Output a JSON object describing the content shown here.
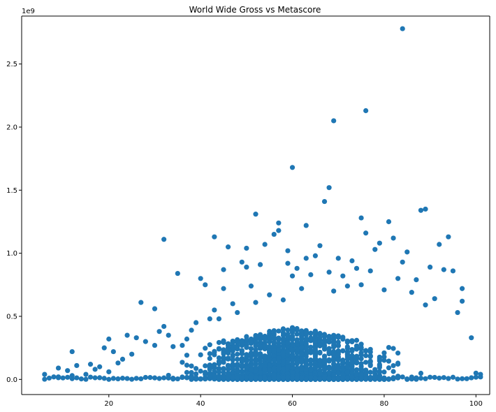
{
  "chart_data": {
    "type": "scatter",
    "title": "World Wide Gross vs Metascore",
    "xlabel": "",
    "ylabel": "",
    "y_offset_label": "1e9",
    "xlim": [
      1,
      103
    ],
    "ylim": [
      -0.12,
      2.88
    ],
    "x_ticks": [
      20,
      40,
      60,
      80,
      100
    ],
    "y_ticks": [
      0.0,
      0.5,
      1.0,
      1.5,
      2.0,
      2.5
    ],
    "y_tick_labels": [
      "0.0",
      "0.5",
      "1.0",
      "1.5",
      "2.0",
      "2.5"
    ],
    "marker_color": "#1f77b4",
    "grid": false,
    "legend": "none",
    "series": [
      {
        "values": [
          [
            6,
            0.04
          ],
          [
            9,
            0.09
          ],
          [
            9,
            0.02
          ],
          [
            11,
            0.07
          ],
          [
            12,
            0.22
          ],
          [
            12,
            0.03
          ],
          [
            13,
            0.11
          ],
          [
            15,
            0.04
          ],
          [
            16,
            0.12
          ],
          [
            17,
            0.08
          ],
          [
            18,
            0.1
          ],
          [
            19,
            0.25
          ],
          [
            20,
            0.32
          ],
          [
            20,
            0.06
          ],
          [
            21,
            0.22
          ],
          [
            22,
            0.13
          ],
          [
            23,
            0.16
          ],
          [
            24,
            0.35
          ],
          [
            25,
            0.2
          ],
          [
            26,
            0.33
          ],
          [
            27,
            0.61
          ],
          [
            28,
            0.3
          ],
          [
            30,
            0.56
          ],
          [
            30,
            0.27
          ],
          [
            31,
            0.38
          ],
          [
            32,
            1.11
          ],
          [
            32,
            0.42
          ],
          [
            33,
            0.35
          ],
          [
            34,
            0.26
          ],
          [
            35,
            0.84
          ],
          [
            36,
            0.27
          ],
          [
            37,
            0.32
          ],
          [
            38,
            0.39
          ],
          [
            39,
            0.45
          ],
          [
            40,
            0.8
          ],
          [
            41,
            0.75
          ],
          [
            42,
            0.48
          ],
          [
            43,
            1.13
          ],
          [
            43,
            0.55
          ],
          [
            44,
            0.48
          ],
          [
            45,
            0.87
          ],
          [
            45,
            0.72
          ],
          [
            46,
            1.05
          ],
          [
            47,
            0.6
          ],
          [
            48,
            0.53
          ],
          [
            49,
            0.93
          ],
          [
            50,
            1.04
          ],
          [
            50,
            0.89
          ],
          [
            51,
            0.74
          ],
          [
            52,
            1.31
          ],
          [
            52,
            0.61
          ],
          [
            53,
            0.91
          ],
          [
            54,
            1.07
          ],
          [
            55,
            0.67
          ],
          [
            56,
            1.15
          ],
          [
            57,
            1.24
          ],
          [
            57,
            1.18
          ],
          [
            58,
            0.63
          ],
          [
            59,
            1.02
          ],
          [
            59,
            0.92
          ],
          [
            60,
            1.68
          ],
          [
            60,
            0.82
          ],
          [
            61,
            0.88
          ],
          [
            62,
            0.72
          ],
          [
            63,
            1.22
          ],
          [
            63,
            0.96
          ],
          [
            64,
            0.83
          ],
          [
            65,
            0.98
          ],
          [
            66,
            1.06
          ],
          [
            67,
            1.41
          ],
          [
            68,
            1.52
          ],
          [
            68,
            0.85
          ],
          [
            69,
            2.05
          ],
          [
            69,
            0.7
          ],
          [
            70,
            0.96
          ],
          [
            71,
            0.82
          ],
          [
            72,
            0.74
          ],
          [
            73,
            0.94
          ],
          [
            74,
            0.88
          ],
          [
            75,
            1.28
          ],
          [
            75,
            0.75
          ],
          [
            76,
            1.16
          ],
          [
            76,
            2.13
          ],
          [
            77,
            0.86
          ],
          [
            78,
            1.03
          ],
          [
            79,
            1.08
          ],
          [
            80,
            0.71
          ],
          [
            81,
            1.25
          ],
          [
            82,
            1.12
          ],
          [
            83,
            0.8
          ],
          [
            84,
            2.78
          ],
          [
            84,
            0.93
          ],
          [
            85,
            1.01
          ],
          [
            86,
            0.69
          ],
          [
            87,
            0.79
          ],
          [
            88,
            1.34
          ],
          [
            89,
            1.35
          ],
          [
            89,
            0.59
          ],
          [
            90,
            0.89
          ],
          [
            91,
            0.64
          ],
          [
            92,
            1.07
          ],
          [
            93,
            0.87
          ],
          [
            94,
            1.13
          ],
          [
            95,
            0.86
          ],
          [
            96,
            0.53
          ],
          [
            97,
            0.72
          ],
          [
            97,
            0.62
          ],
          [
            99,
            0.33
          ],
          [
            100,
            0.05
          ],
          [
            101,
            0.04
          ]
        ]
      }
    ],
    "dense_band": {
      "x_range": [
        6,
        101
      ],
      "y_range": [
        0.0,
        0.4
      ],
      "peak_x": 60,
      "peak_y": 0.42,
      "density": "high"
    }
  }
}
